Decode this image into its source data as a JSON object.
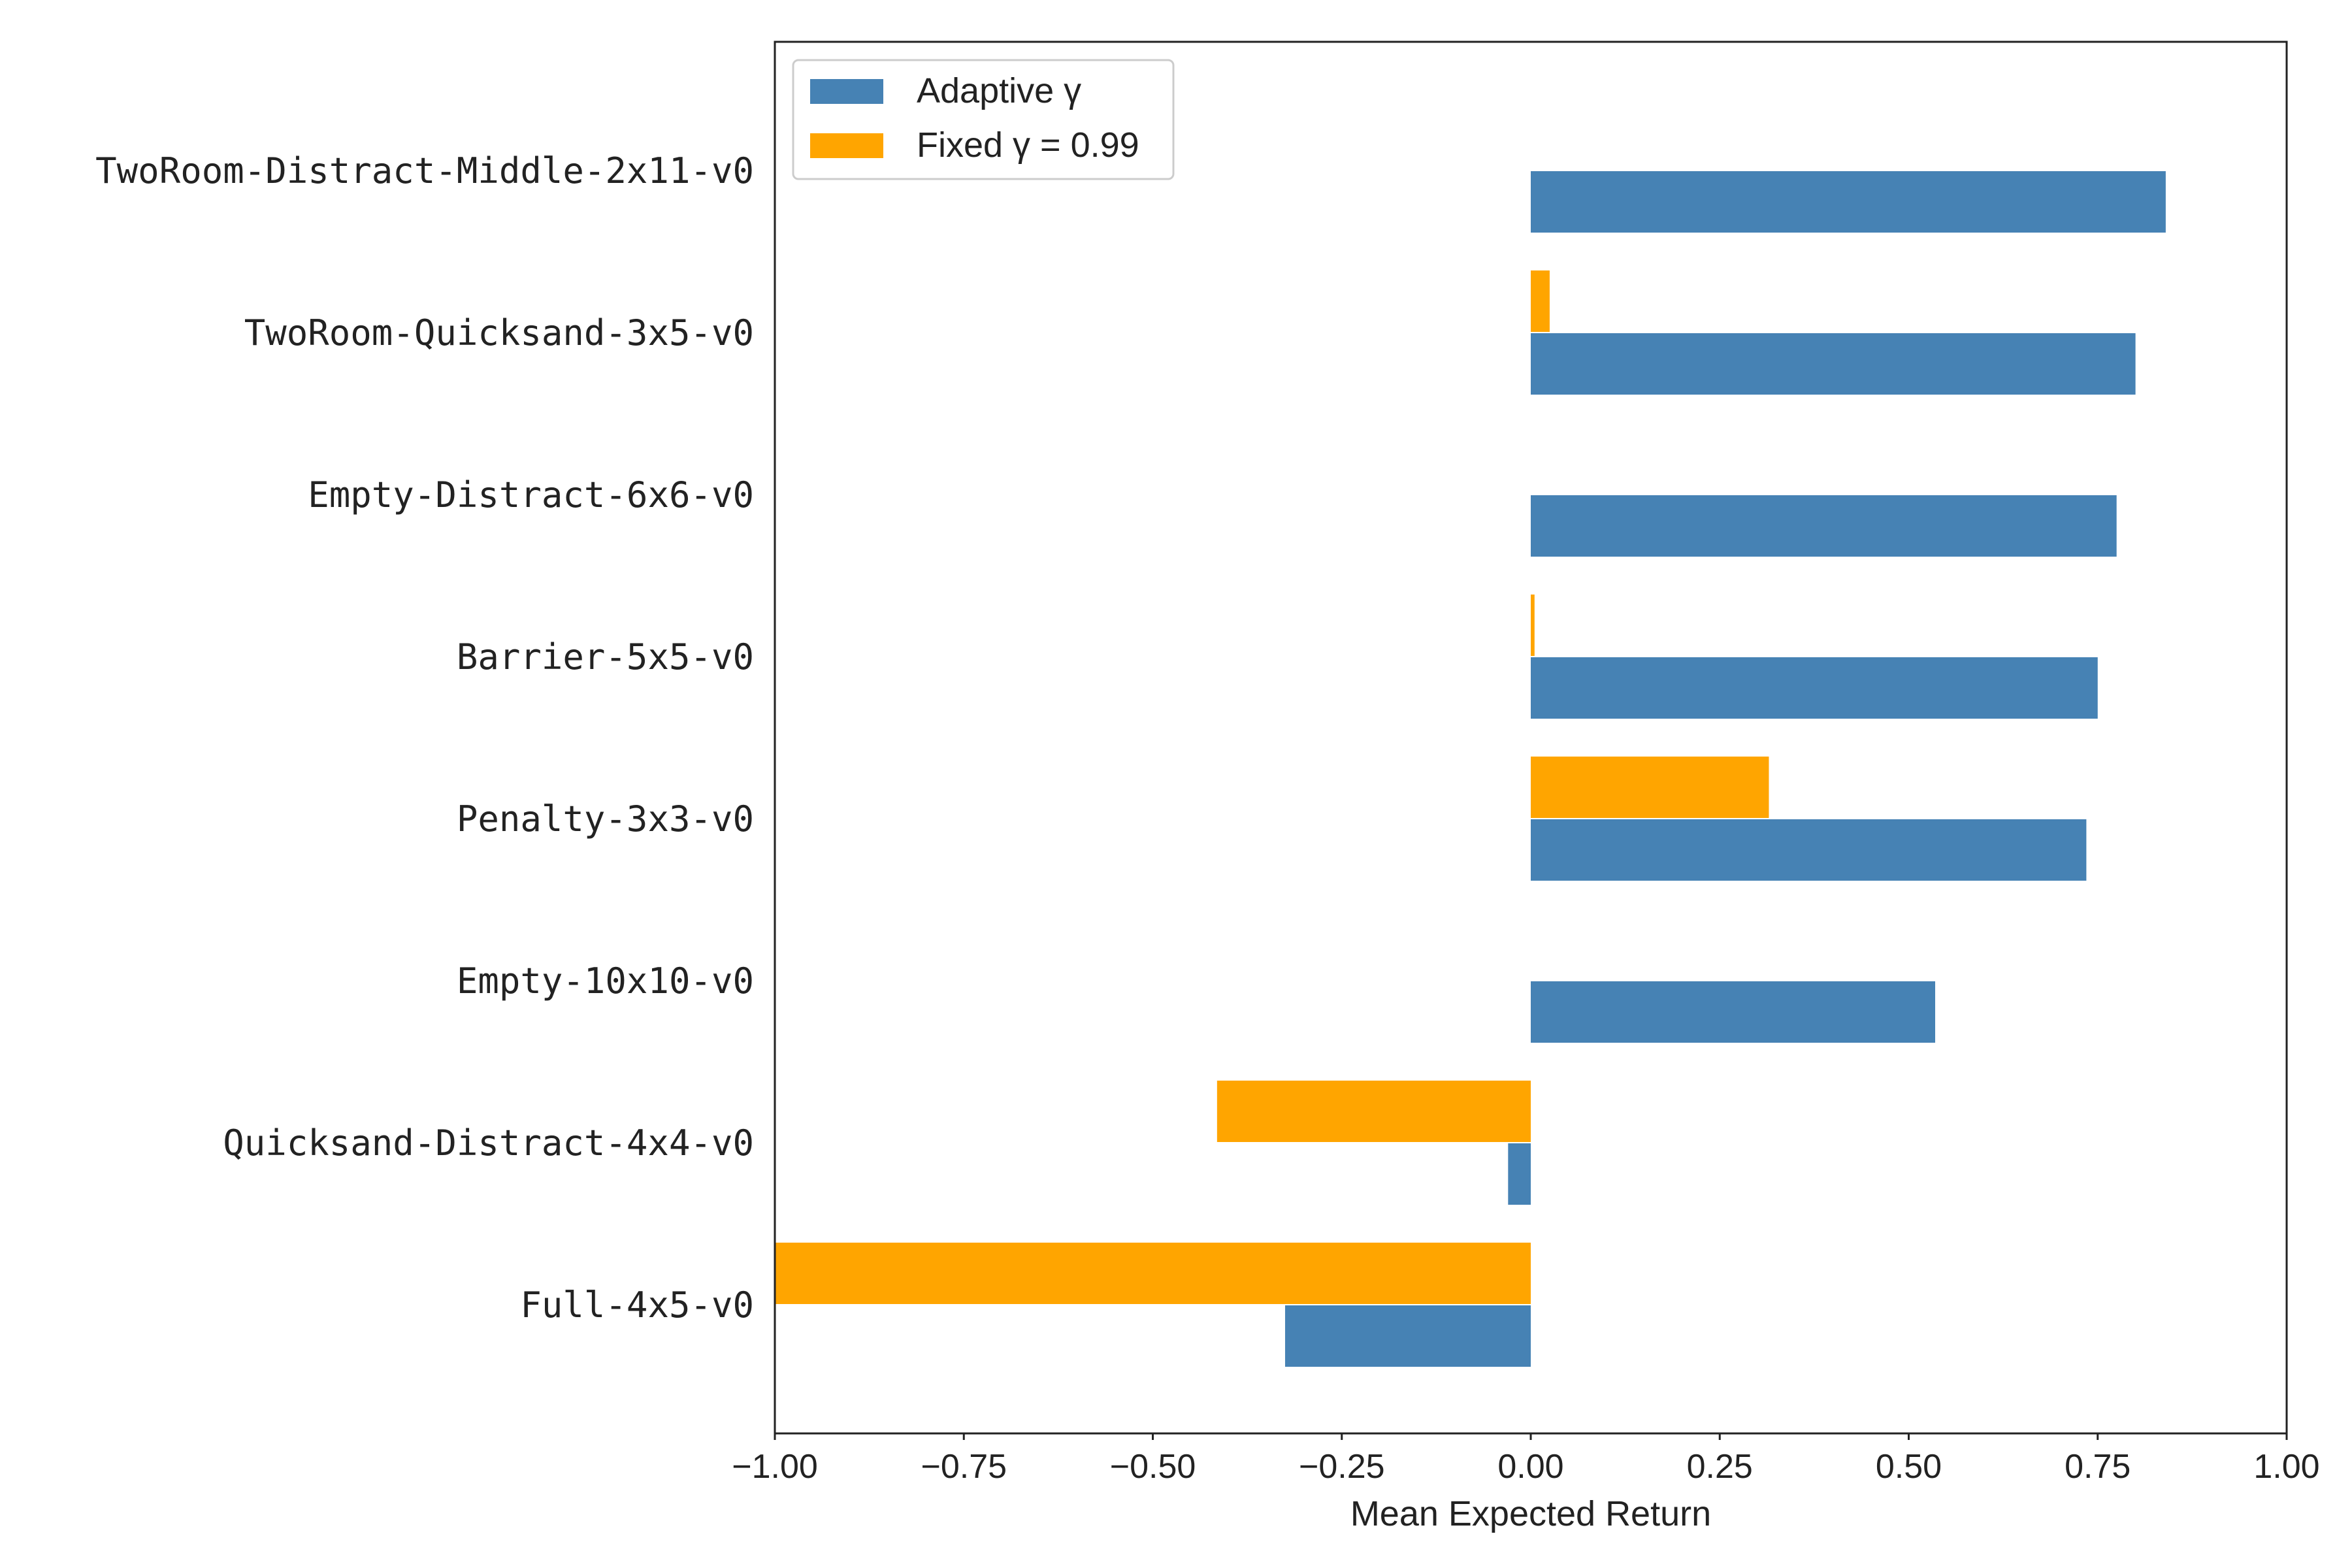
{
  "chart_data": {
    "type": "bar",
    "orientation": "horizontal",
    "title": "",
    "xlabel": "Mean Expected Return",
    "ylabel": "",
    "xlim": [
      -1.0,
      1.0
    ],
    "xticks": [
      "−1.00",
      "−0.75",
      "−0.50",
      "−0.25",
      "0.00",
      "0.25",
      "0.50",
      "0.75",
      "1.00"
    ],
    "xtick_values": [
      -1.0,
      -0.75,
      -0.5,
      -0.25,
      0.0,
      0.25,
      0.5,
      0.75,
      1.0
    ],
    "grid": false,
    "legend_position": "top-left",
    "categories": [
      "TwoRoom-Distract-Middle-2x11-v0",
      "TwoRoom-Quicksand-3x5-v0",
      "Empty-Distract-6x6-v0",
      "Barrier-5x5-v0",
      "Penalty-3x3-v0",
      "Empty-10x10-v0",
      "Quicksand-Distract-4x4-v0",
      "Full-4x5-v0"
    ],
    "series": [
      {
        "name": "Adaptive γ",
        "color": "#4682b4",
        "values": [
          0.84,
          0.8,
          0.775,
          0.75,
          0.735,
          0.535,
          -0.03,
          -0.325
        ]
      },
      {
        "name": "Fixed γ = 0.99",
        "color": "#ffa500",
        "values": [
          0.0,
          0.025,
          0.0,
          0.005,
          0.315,
          0.0,
          -0.415,
          -1.0
        ]
      }
    ]
  }
}
